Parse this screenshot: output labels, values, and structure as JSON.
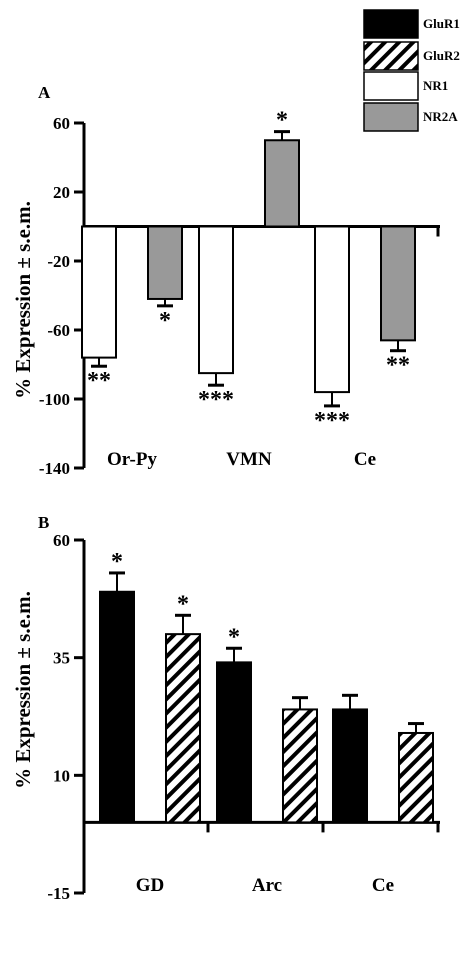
{
  "legend": {
    "items": [
      {
        "label": "GluR1",
        "fill": "solid",
        "color": "#000000"
      },
      {
        "label": "GluR2",
        "fill": "hatch",
        "color": "#000000"
      },
      {
        "label": "NR1",
        "fill": "white",
        "color": "#ffffff"
      },
      {
        "label": "NR2A",
        "fill": "gray",
        "color": "#999999"
      }
    ]
  },
  "chart_data": [
    {
      "type": "bar",
      "panel_label": "A",
      "ylabel": "% Expression ± s.e.m.",
      "ylim": [
        -140,
        60
      ],
      "yticks": [
        "60",
        "20",
        "-20",
        "-60",
        "-100",
        "-140"
      ],
      "ytick_values": [
        60,
        20,
        -20,
        -60,
        -100,
        -140
      ],
      "categories": [
        "Or-Py",
        "VMN",
        "Ce"
      ],
      "bars": [
        {
          "category": "Or-Py",
          "series": "NR1",
          "value": -76,
          "error": 5,
          "marker": "**"
        },
        {
          "category": "Or-Py",
          "series": "NR2A",
          "value": -42,
          "error": 4,
          "marker": "*"
        },
        {
          "category": "VMN",
          "series": "NR1",
          "value": -85,
          "error": 7,
          "marker": "***"
        },
        {
          "category": "VMN",
          "series": "NR2A",
          "value": 50,
          "error": 5,
          "marker": "*"
        },
        {
          "category": "Ce",
          "series": "NR1",
          "value": -96,
          "error": 8,
          "marker": "***"
        },
        {
          "category": "Ce",
          "series": "NR2A",
          "value": -66,
          "error": 6,
          "marker": "**"
        }
      ]
    },
    {
      "type": "bar",
      "panel_label": "B",
      "ylabel": "% Expression ± s.e.m.",
      "ylim": [
        -15,
        60
      ],
      "yticks": [
        "60",
        "35",
        "10",
        "-15"
      ],
      "ytick_values": [
        60,
        35,
        10,
        -15
      ],
      "categories": [
        "GD",
        "Arc",
        "Ce"
      ],
      "bars": [
        {
          "category": "GD",
          "series": "GluR1",
          "value": 49,
          "error": 4,
          "marker": "*"
        },
        {
          "category": "GD",
          "series": "GluR2",
          "value": 40,
          "error": 4,
          "marker": "*"
        },
        {
          "category": "Arc",
          "series": "GluR1",
          "value": 34,
          "error": 3,
          "marker": "*"
        },
        {
          "category": "Arc",
          "series": "GluR2",
          "value": 24,
          "error": 2.5,
          "marker": ""
        },
        {
          "category": "Ce",
          "series": "GluR1",
          "value": 24,
          "error": 3,
          "marker": ""
        },
        {
          "category": "Ce",
          "series": "GluR2",
          "value": 19,
          "error": 2,
          "marker": ""
        }
      ]
    }
  ]
}
